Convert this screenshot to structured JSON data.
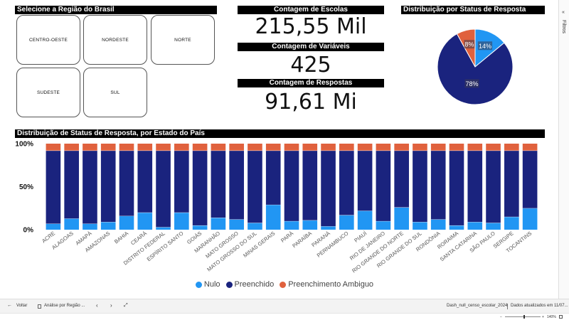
{
  "region_selector": {
    "title": "Selecione a Região do Brasil",
    "buttons": [
      "CENTRO-OESTE",
      "NORDESTE",
      "NORTE",
      "SUDESTE",
      "SUL"
    ]
  },
  "kpis": {
    "escolas": {
      "title": "Contagem de Escolas",
      "value": "215,55 Mil"
    },
    "variaveis": {
      "title": "Contagem de Variáveis",
      "value": "425"
    },
    "respostas": {
      "title": "Contagem de Respostas",
      "value": "91,61 Mi"
    }
  },
  "pie": {
    "title": "Distribuição por Status de Resposta",
    "slices": [
      {
        "name": "Nulo",
        "value": 14,
        "label": "14%",
        "color": "#2196f3"
      },
      {
        "name": "Preenchido",
        "value": 78,
        "label": "78%",
        "color": "#1a237e"
      },
      {
        "name": "Preenchimento Ambiguo",
        "value": 8,
        "label": "8%",
        "color": "#e0613d"
      }
    ]
  },
  "chart_data": {
    "type": "bar",
    "stacked": "100%",
    "title": "Distribuição de Status de Resposta, por Estado do País",
    "categories": [
      "ACRE",
      "ALAGOAS",
      "AMAPÁ",
      "AMAZONAS",
      "BAHIA",
      "CEARÁ",
      "DISTRITO FEDERAL",
      "ESPÍRITO SANTO",
      "GOIÁS",
      "MARANHÃO",
      "MATO GROSSO",
      "MATO GROSSO DO SUL",
      "MINAS GERAIS",
      "PARÁ",
      "PARAÍBA",
      "PARANÁ",
      "PERNAMBUCO",
      "PIAUÍ",
      "RIO DE JANEIRO",
      "RIO GRANDE DO NORTE",
      "RIO GRANDE DO SUL",
      "RONDÔNIA",
      "RORAIMA",
      "SANTA CATARINA",
      "SÃO PAULO",
      "SERGIPE",
      "TOCANTINS"
    ],
    "yticks": [
      "100%",
      "50%",
      "0%"
    ],
    "ylim": [
      0,
      100
    ],
    "series": [
      {
        "name": "Nulo",
        "color": "#2196f3",
        "values": [
          7,
          13,
          7,
          9,
          16,
          20,
          3,
          20,
          5,
          14,
          12,
          8,
          29,
          10,
          11,
          4,
          17,
          22,
          10,
          26,
          9,
          12,
          5,
          9,
          8,
          15,
          25
        ]
      },
      {
        "name": "Preenchido",
        "color": "#1a237e",
        "values": [
          85,
          79,
          85,
          83,
          76,
          72,
          89,
          72,
          87,
          78,
          80,
          84,
          63,
          82,
          81,
          88,
          75,
          70,
          82,
          66,
          83,
          80,
          87,
          83,
          84,
          77,
          67
        ]
      },
      {
        "name": "Preenchimento Ambiguo",
        "color": "#e0613d",
        "values": [
          8,
          8,
          8,
          8,
          8,
          8,
          8,
          8,
          8,
          8,
          8,
          8,
          8,
          8,
          8,
          8,
          8,
          8,
          8,
          8,
          8,
          8,
          8,
          8,
          8,
          8,
          8
        ]
      }
    ],
    "legend_position": "bottom-center"
  },
  "side_panel": {
    "label": "Filtros",
    "chevron": "«"
  },
  "bottom_bar": {
    "back_label": "Voltar",
    "back_icon": "←",
    "page_tab": "Análise por Região ...",
    "prev": "‹",
    "next": "›",
    "expand_icon": "⤢",
    "file_name": "Dash_null_censo_escolar_2024",
    "updated": "Dados atualizados em 11/07..."
  },
  "status_bar": {
    "zoom": "140%"
  }
}
